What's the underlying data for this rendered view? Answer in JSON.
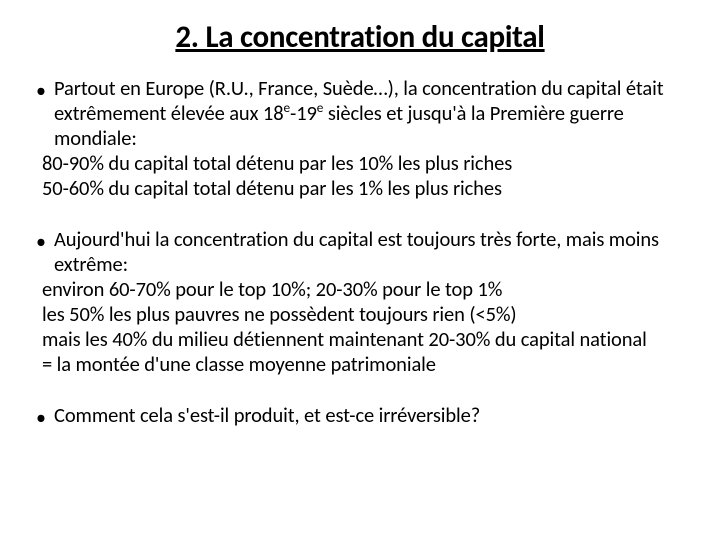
{
  "title": "2. La concentration du capital",
  "bullets": [
    {
      "lead": "Partout en Europe (R.U., France, Suède…), la concentration du capital était extrêmement élevée aux 18",
      "sup1": "e",
      "mid": "-19",
      "sup2": "e",
      "tail": " siècles et jusqu'à la Première guerre mondiale:",
      "cont": [
        "80-90% du capital total détenu par les 10% les plus riches",
        "50-60% du capital total détenu par les 1% les plus riches"
      ]
    },
    {
      "lead": "Aujourd'hui la concentration du capital est toujours très forte, mais moins extrême:",
      "cont": [
        "environ 60-70% pour le top 10%; 20-30% pour le top 1%",
        "les 50% les plus pauvres ne possèdent toujours rien (<5%)",
        "mais les 40% du milieu détiennent maintenant 20-30% du capital national",
        " = la montée d'une classe moyenne patrimoniale"
      ]
    },
    {
      "lead": "Comment cela s'est-il produit, et est-ce irréversible?",
      "cont": []
    }
  ]
}
